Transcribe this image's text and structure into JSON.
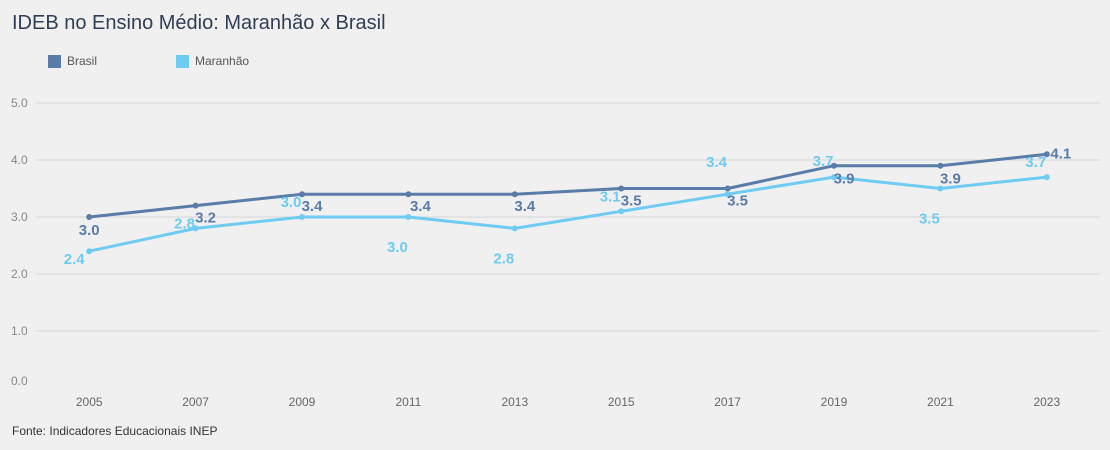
{
  "title": "IDEB no Ensino Médio: Maranhão x Brasil",
  "source": "Fonte: Indicadores Educacionais INEP",
  "chart_data": {
    "type": "line",
    "title": "IDEB no Ensino Médio: Maranhão x Brasil",
    "categories": [
      "2005",
      "2007",
      "2009",
      "2011",
      "2013",
      "2015",
      "2017",
      "2019",
      "2021",
      "2023"
    ],
    "series": [
      {
        "name": "Brasil",
        "color": "#5a7ca8",
        "values": [
          3.0,
          3.2,
          3.4,
          3.4,
          3.4,
          3.5,
          3.5,
          3.9,
          3.9,
          4.1
        ]
      },
      {
        "name": "Maranhão",
        "color": "#6ecbf2",
        "values": [
          2.4,
          2.8,
          3.0,
          3.0,
          2.8,
          3.1,
          3.4,
          3.7,
          3.5,
          3.7
        ]
      }
    ],
    "y_ticks": [
      "0.0",
      "1.0",
      "2.0",
      "3.0",
      "4.0",
      "5.0"
    ],
    "ylim": [
      0,
      5
    ],
    "grid": true,
    "legend_position": "top-left",
    "data_label_texts": {
      "Brasil": [
        "3.0",
        "3.2",
        "3.4",
        "3.4",
        "3.4",
        "3.5",
        "3.5",
        "3.9",
        "3.9",
        "4.1"
      ],
      "Maranhão": [
        "2.4",
        "2.8",
        "3.0",
        "3.0",
        "2.8",
        "3.1",
        "3.4",
        "3.7",
        "3.5",
        "3.7"
      ]
    }
  }
}
